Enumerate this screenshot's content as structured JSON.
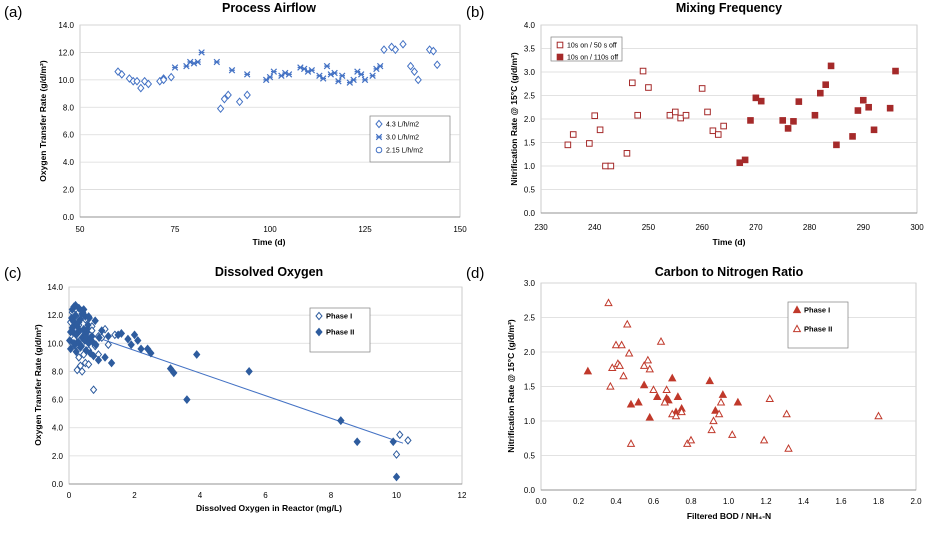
{
  "chart_data": [
    {
      "panel": "(a)",
      "type": "scatter",
      "title": "Process Airflow",
      "xlabel": "Time (d)",
      "ylabel": "Oxygen Transfer Rate (g/d/m²)",
      "xlim": [
        50,
        150
      ],
      "ylim": [
        0,
        14
      ],
      "xticks": [
        "50",
        "75",
        "100",
        "125",
        "150"
      ],
      "yticks": [
        "0.0",
        "2.0",
        "4.0",
        "6.0",
        "8.0",
        "10.0",
        "12.0",
        "14.0"
      ],
      "grid": true,
      "legend_position": "lower-right",
      "colors": {
        "marker": "#4472c4",
        "grid": "#d9d9d9"
      },
      "series": [
        {
          "name": "4.3 L/h/m2",
          "marker": "diamond-open",
          "x": [
            60,
            61,
            63,
            64,
            65,
            66,
            67,
            68,
            71,
            72,
            72,
            74,
            87,
            88,
            89,
            92,
            94,
            130,
            132,
            133,
            135,
            137,
            138,
            139,
            142,
            143,
            144
          ],
          "y": [
            10.6,
            10.4,
            10.1,
            9.9,
            9.9,
            9.4,
            9.9,
            9.7,
            9.9,
            10.1,
            10.0,
            10.2,
            7.9,
            8.6,
            8.9,
            8.4,
            8.9,
            12.2,
            12.4,
            12.2,
            12.6,
            11.0,
            10.6,
            10.0,
            12.2,
            12.1,
            11.1
          ]
        },
        {
          "name": "3.0 L/h/m2",
          "marker": "x",
          "x": [
            75,
            78,
            79,
            80,
            81,
            82,
            86,
            90,
            94,
            99,
            100,
            101,
            103,
            104,
            105,
            108,
            109,
            110,
            111,
            113,
            114,
            115,
            116,
            117,
            118,
            119,
            121,
            122,
            123,
            124,
            125,
            127,
            128,
            129
          ],
          "y": [
            10.9,
            11.0,
            11.3,
            11.2,
            11.3,
            12.0,
            11.3,
            10.7,
            10.4,
            10.0,
            10.2,
            10.6,
            10.3,
            10.5,
            10.4,
            10.9,
            10.8,
            10.6,
            10.7,
            10.3,
            10.1,
            11.0,
            10.4,
            10.5,
            9.9,
            10.3,
            9.8,
            10.0,
            10.6,
            10.4,
            10.0,
            10.3,
            10.8,
            11.0
          ]
        },
        {
          "name": "2.15 L/h/m2",
          "marker": "circle-open",
          "x": [],
          "y": []
        }
      ]
    },
    {
      "panel": "(b)",
      "type": "scatter",
      "title": "Mixing Frequency",
      "xlabel": "Time (d)",
      "ylabel": "Nitrification Rate @ 15°C (g/d/m²)",
      "xlim": [
        230,
        300
      ],
      "ylim": [
        0,
        4
      ],
      "xticks": [
        "230",
        "240",
        "250",
        "260",
        "270",
        "280",
        "290",
        "300"
      ],
      "yticks": [
        "0.0",
        "0.5",
        "1.0",
        "1.5",
        "2.0",
        "2.5",
        "3.0",
        "3.5",
        "4.0"
      ],
      "grid": true,
      "legend_position": "top-left",
      "colors": {
        "marker": "#a52a2a",
        "grid": "#d9d9d9"
      },
      "series": [
        {
          "name": "10s on / 50 s off",
          "marker": "square-open",
          "x": [
            235,
            236,
            239,
            240,
            241,
            242,
            243,
            246,
            247,
            248,
            249,
            250,
            254,
            255,
            256,
            257,
            260,
            261,
            262,
            263,
            264
          ],
          "y": [
            1.45,
            1.67,
            1.48,
            2.07,
            1.77,
            1.0,
            1.0,
            1.27,
            2.77,
            2.08,
            3.02,
            2.67,
            2.08,
            2.15,
            2.02,
            2.08,
            2.65,
            2.15,
            1.75,
            1.67,
            1.85
          ]
        },
        {
          "name": "10s on / 110s off",
          "marker": "square-filled",
          "x": [
            267,
            268,
            269,
            270,
            271,
            275,
            276,
            277,
            278,
            281,
            282,
            283,
            284,
            285,
            288,
            289,
            290,
            291,
            292,
            295,
            296
          ],
          "y": [
            1.07,
            1.13,
            1.97,
            2.45,
            2.38,
            1.97,
            1.8,
            1.95,
            2.37,
            2.08,
            2.55,
            2.73,
            3.13,
            1.45,
            1.63,
            2.18,
            2.4,
            2.25,
            1.77,
            2.23,
            3.02
          ]
        }
      ]
    },
    {
      "panel": "(c)",
      "type": "scatter",
      "title": "Dissolved Oxygen",
      "xlabel": "Dissolved Oxygen in Reactor (mg/L)",
      "ylabel": "Oxygen Transfer Rate (g/d/m²)",
      "xlim": [
        0,
        12
      ],
      "ylim": [
        0,
        14
      ],
      "xticks": [
        "0",
        "2",
        "4",
        "6",
        "8",
        "10",
        "12"
      ],
      "yticks": [
        "0.0",
        "2.0",
        "4.0",
        "6.0",
        "8.0",
        "10.0",
        "12.0",
        "14.0"
      ],
      "grid": true,
      "legend_position": "top-right",
      "colors": {
        "marker": "#2e5c9e",
        "grid": "#d9d9d9",
        "trend": "#4472c4"
      },
      "trendline": {
        "x": [
          0,
          10.2
        ],
        "y": [
          11.1,
          2.9
        ]
      },
      "series": [
        {
          "name": "Phase I",
          "marker": "diamond-open",
          "x": [
            0.05,
            0.1,
            0.15,
            0.2,
            0.25,
            0.3,
            0.35,
            0.4,
            0.45,
            0.5,
            0.55,
            0.6,
            0.7,
            0.8,
            0.9,
            1.0,
            1.1,
            1.2,
            1.4,
            0.3,
            0.5,
            0.7,
            0.2,
            0.6,
            0.9,
            0.15,
            0.4,
            0.75,
            10.0,
            10.1,
            10.35,
            8.3,
            0.1,
            0.3
          ],
          "y": [
            11.5,
            12.2,
            10.3,
            9.8,
            8.1,
            9.0,
            8.4,
            10.4,
            9.2,
            8.6,
            10.2,
            9.5,
            11.2,
            9.8,
            10.5,
            10.4,
            11.0,
            9.9,
            10.6,
            12.2,
            11.7,
            10.9,
            11.9,
            8.5,
            9.2,
            12.6,
            8.0,
            6.7,
            2.1,
            3.5,
            3.1,
            4.5,
            10.0,
            11.3
          ]
        },
        {
          "name": "Phase II",
          "marker": "diamond-filled",
          "x": [
            0.02,
            0.05,
            0.08,
            0.1,
            0.12,
            0.15,
            0.18,
            0.2,
            0.22,
            0.25,
            0.28,
            0.3,
            0.33,
            0.35,
            0.38,
            0.4,
            0.42,
            0.45,
            0.48,
            0.5,
            0.52,
            0.55,
            0.58,
            0.6,
            0.65,
            0.7,
            0.75,
            0.8,
            0.9,
            1.0,
            1.1,
            1.2,
            1.3,
            1.5,
            1.6,
            1.8,
            1.9,
            2.0,
            2.1,
            2.2,
            2.4,
            2.5,
            3.1,
            3.2,
            3.6,
            3.9,
            5.5,
            8.3,
            8.8,
            9.9,
            10.0,
            0.1,
            0.2,
            0.3,
            0.4,
            0.5,
            0.6,
            0.15,
            0.25,
            0.35,
            0.45,
            0.55,
            0.65,
            0.05,
            0.12,
            0.22,
            0.32,
            0.42,
            0.52,
            0.62,
            0.72,
            0.82,
            0.92
          ],
          "y": [
            10.2,
            9.6,
            11.8,
            12.4,
            10.8,
            11.5,
            9.9,
            12.0,
            10.6,
            11.2,
            10.1,
            12.5,
            10.9,
            11.7,
            9.8,
            12.3,
            10.4,
            11.0,
            10.2,
            11.9,
            9.5,
            10.8,
            11.3,
            10.0,
            9.3,
            10.5,
            9.1,
            11.6,
            8.8,
            10.9,
            9.0,
            10.5,
            8.6,
            10.6,
            10.7,
            10.3,
            9.9,
            10.6,
            10.2,
            9.6,
            9.6,
            9.3,
            8.2,
            7.9,
            6.0,
            9.2,
            8.0,
            4.5,
            3.0,
            3.0,
            0.5,
            11.1,
            12.7,
            11.5,
            12.1,
            10.7,
            11.9,
            10.0,
            11.4,
            9.7,
            12.4,
            11.0,
            10.3,
            10.8,
            11.6,
            9.4,
            10.9,
            12.2,
            10.5,
            11.8,
            10.1,
            9.9,
            10.4
          ]
        }
      ]
    },
    {
      "panel": "(d)",
      "type": "scatter",
      "title": "Carbon to Nitrogen Ratio",
      "xlabel": "Filtered BOD / NH₄-N",
      "ylabel": "Nitrification Rate @ 15°C (g/d/m²)",
      "xlim": [
        0.0,
        2.0
      ],
      "ylim": [
        0.0,
        3.0
      ],
      "xticks": [
        "0.0",
        "0.2",
        "0.4",
        "0.6",
        "0.8",
        "1.0",
        "1.2",
        "1.4",
        "1.6",
        "1.8",
        "2.0"
      ],
      "yticks": [
        "0.0",
        "0.5",
        "1.0",
        "1.5",
        "2.0",
        "2.5",
        "3.0"
      ],
      "grid": true,
      "legend_position": "top-right",
      "colors": {
        "marker": "#c0392b",
        "grid": "#d9d9d9"
      },
      "series": [
        {
          "name": "Phase I",
          "marker": "triangle-filled",
          "x": [
            0.25,
            0.48,
            0.52,
            0.55,
            0.58,
            0.62,
            0.67,
            0.68,
            0.7,
            0.72,
            0.73,
            0.75,
            0.9,
            0.93,
            0.97,
            1.05
          ],
          "y": [
            1.72,
            1.24,
            1.27,
            1.52,
            1.05,
            1.35,
            1.33,
            1.3,
            1.62,
            1.13,
            1.35,
            1.18,
            1.58,
            1.15,
            1.38,
            1.27
          ]
        },
        {
          "name": "Phase II",
          "marker": "triangle-open",
          "x": [
            0.36,
            0.37,
            0.38,
            0.4,
            0.41,
            0.42,
            0.43,
            0.44,
            0.46,
            0.47,
            0.48,
            0.55,
            0.57,
            0.58,
            0.6,
            0.64,
            0.66,
            0.67,
            0.7,
            0.72,
            0.75,
            0.78,
            0.8,
            0.91,
            0.92,
            0.95,
            0.96,
            1.02,
            1.19,
            1.22,
            1.31,
            1.32,
            1.8
          ],
          "y": [
            2.71,
            1.5,
            1.77,
            2.1,
            1.83,
            1.8,
            2.1,
            1.65,
            2.4,
            1.98,
            0.67,
            1.8,
            1.88,
            1.75,
            1.45,
            2.15,
            1.27,
            1.45,
            1.1,
            1.07,
            1.13,
            0.67,
            0.72,
            0.87,
            1.0,
            1.1,
            1.27,
            0.8,
            0.72,
            1.32,
            1.1,
            0.6,
            1.07
          ]
        }
      ]
    }
  ]
}
